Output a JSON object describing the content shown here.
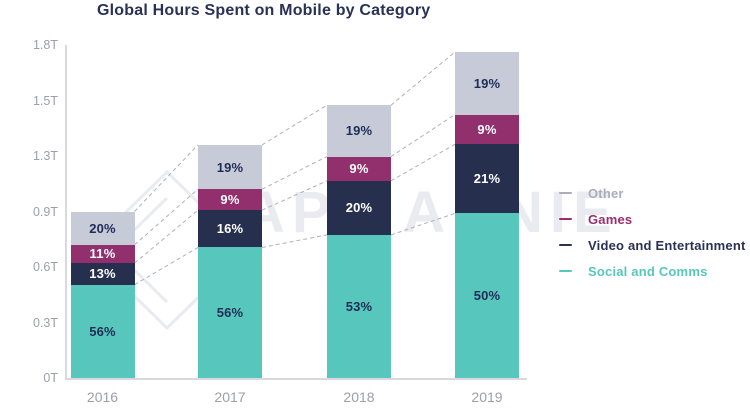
{
  "title": "Global Hours Spent on Mobile by Category",
  "watermark": "APP ANNIE",
  "colors": {
    "title": "#2a3156",
    "axis_label": "#9aa0ab",
    "axis_line": "#d7d9de",
    "connector": "#aeb2be",
    "watermark": "#e9ebf1"
  },
  "chart_data": {
    "type": "bar",
    "stacked": true,
    "title": "Global Hours Spent on Mobile by Category",
    "categories": [
      "2016",
      "2017",
      "2018",
      "2019"
    ],
    "series": [
      {
        "name": "Social and Comms",
        "color": "#57c6bd",
        "label_color": "#1f2c55",
        "values_pct": [
          56,
          56,
          53,
          50
        ]
      },
      {
        "name": "Video and Entertainment",
        "color": "#262f4e",
        "label_color": "#ffffff",
        "values_pct": [
          13,
          16,
          20,
          21
        ]
      },
      {
        "name": "Games",
        "color": "#92306d",
        "label_color": "#ffffff",
        "values_pct": [
          11,
          9,
          9,
          9
        ]
      },
      {
        "name": "Other",
        "color": "#c7cbd8",
        "label_color": "#1f2c55",
        "values_pct": [
          20,
          19,
          19,
          19
        ]
      }
    ],
    "totals_trillions": [
      0.9,
      1.26,
      1.46,
      1.78
    ],
    "y_axis": {
      "ticks": [
        "0T",
        "0.3T",
        "0.6T",
        "0.9T",
        "1.3T",
        "1.5T",
        "1.8T"
      ],
      "max_trillions": 1.8
    },
    "xlabel": "",
    "ylabel": "",
    "grid": false,
    "legend": {
      "position": "right",
      "items": [
        "Other",
        "Games",
        "Video and Entertainment",
        "Social and Comms"
      ]
    },
    "connectors": "dashed lines join segment boundaries of adjacent bars"
  },
  "legend": {
    "items": [
      {
        "label": "Other",
        "color": "#a9aebc"
      },
      {
        "label": "Games",
        "color": "#9a2f6e"
      },
      {
        "label": "Video and Entertainment",
        "color": "#2a3156"
      },
      {
        "label": "Social and Comms",
        "color": "#58c6bd"
      }
    ]
  }
}
